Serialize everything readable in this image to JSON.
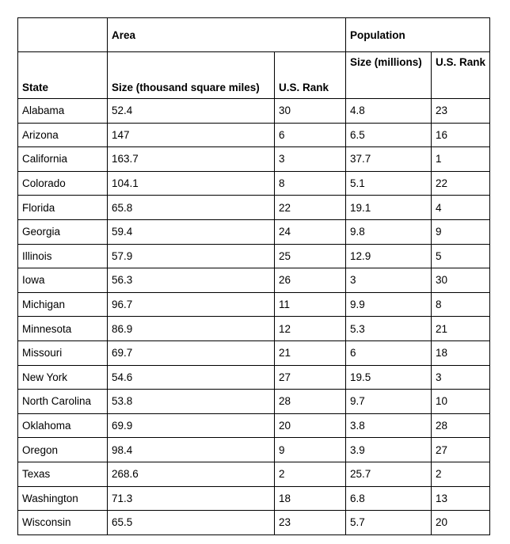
{
  "header": {
    "area_label": "Area",
    "population_label": "Population",
    "state_label": "State",
    "area_size_label": "Size (thousand square miles)",
    "area_rank_label": "U.S. Rank",
    "pop_size_label": "Size (millions)",
    "pop_rank_label": "U.S. Rank"
  },
  "rows": [
    {
      "state": "Alabama",
      "area": "52.4",
      "area_rank": "30",
      "pop": "4.8",
      "pop_rank": "23"
    },
    {
      "state": "Arizona",
      "area": "147",
      "area_rank": "6",
      "pop": "6.5",
      "pop_rank": "16"
    },
    {
      "state": "California",
      "area": "163.7",
      "area_rank": "3",
      "pop": "37.7",
      "pop_rank": "1"
    },
    {
      "state": "Colorado",
      "area": "104.1",
      "area_rank": "8",
      "pop": "5.1",
      "pop_rank": "22"
    },
    {
      "state": "Florida",
      "area": "65.8",
      "area_rank": "22",
      "pop": "19.1",
      "pop_rank": "4"
    },
    {
      "state": "Georgia",
      "area": "59.4",
      "area_rank": "24",
      "pop": "9.8",
      "pop_rank": "9"
    },
    {
      "state": "Illinois",
      "area": "57.9",
      "area_rank": "25",
      "pop": "12.9",
      "pop_rank": "5"
    },
    {
      "state": "Iowa",
      "area": "56.3",
      "area_rank": "26",
      "pop": "3",
      "pop_rank": "30"
    },
    {
      "state": "Michigan",
      "area": "96.7",
      "area_rank": "11",
      "pop": "9.9",
      "pop_rank": "8"
    },
    {
      "state": "Minnesota",
      "area": "86.9",
      "area_rank": "12",
      "pop": "5.3",
      "pop_rank": "21"
    },
    {
      "state": "Missouri",
      "area": "69.7",
      "area_rank": "21",
      "pop": "6",
      "pop_rank": "18"
    },
    {
      "state": "New York",
      "area": "54.6",
      "area_rank": "27",
      "pop": "19.5",
      "pop_rank": "3"
    },
    {
      "state": "North Carolina",
      "area": "53.8",
      "area_rank": "28",
      "pop": "9.7",
      "pop_rank": "10"
    },
    {
      "state": "Oklahoma",
      "area": "69.9",
      "area_rank": "20",
      "pop": "3.8",
      "pop_rank": "28"
    },
    {
      "state": "Oregon",
      "area": "98.4",
      "area_rank": "9",
      "pop": "3.9",
      "pop_rank": "27"
    },
    {
      "state": "Texas",
      "area": "268.6",
      "area_rank": "2",
      "pop": "25.7",
      "pop_rank": "2"
    },
    {
      "state": "Washington",
      "area": "71.3",
      "area_rank": "18",
      "pop": "6.8",
      "pop_rank": "13"
    },
    {
      "state": "Wisconsin",
      "area": "65.5",
      "area_rank": "23",
      "pop": "5.7",
      "pop_rank": "20"
    }
  ]
}
